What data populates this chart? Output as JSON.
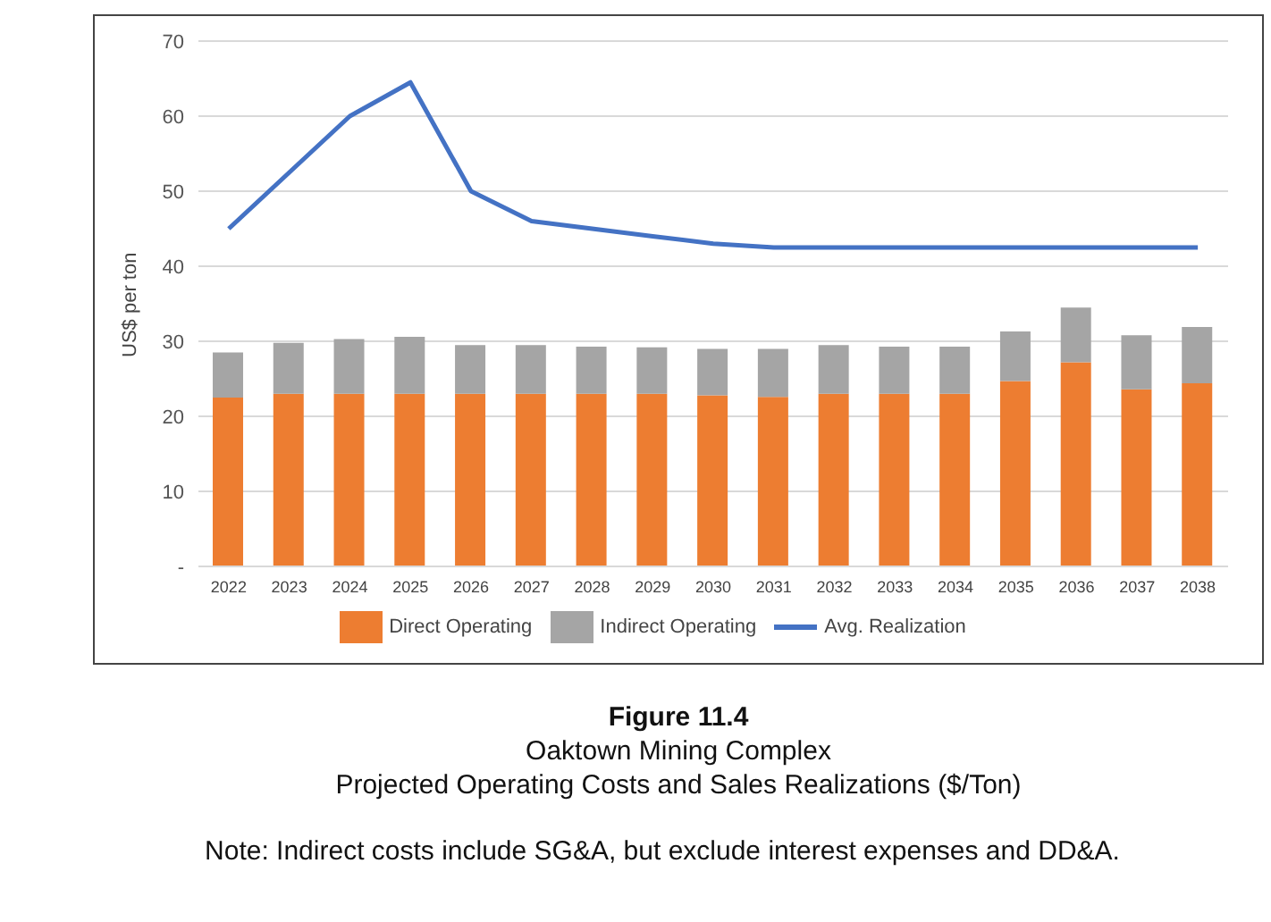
{
  "chart_data": {
    "type": "bar",
    "title": "Figure 11.4",
    "subtitle": "Oaktown Mining Complex",
    "annotations": [
      "Projected Operating Costs and Sales Realizations ($/Ton)",
      "Note: Indirect costs include SG&A, but exclude interest expenses and DD&A."
    ],
    "ylabel": "US$ per ton",
    "categories": [
      "2022",
      "2023",
      "2024",
      "2025",
      "2026",
      "2027",
      "2028",
      "2029",
      "2030",
      "2031",
      "2032",
      "2033",
      "2034",
      "2035",
      "2036",
      "2037",
      "2038"
    ],
    "series": [
      {
        "name": "Direct Operating",
        "color": "#ed7d31",
        "values": [
          22.5,
          23,
          23,
          23,
          23,
          23,
          23,
          23,
          22.8,
          22.6,
          23,
          23,
          23,
          24.7,
          27.2,
          23.6,
          24.4
        ]
      },
      {
        "name": "Indirect Operating",
        "color": "#a5a5a5",
        "values": [
          6,
          6.8,
          7.3,
          7.6,
          6.5,
          6.5,
          6.3,
          6.2,
          6.2,
          6.4,
          6.5,
          6.3,
          6.3,
          6.6,
          7.3,
          7.2,
          7.5
        ]
      },
      {
        "name": "Avg. Realization",
        "type": "line",
        "color": "#4472c4",
        "values": [
          45,
          52.5,
          60,
          64.5,
          50,
          46,
          45,
          44,
          43,
          42.5,
          42.5,
          42.5,
          42.5,
          42.5,
          42.5,
          42.5,
          42.5
        ]
      }
    ],
    "stacked": true,
    "ylim": [
      0,
      70
    ],
    "yticks": [
      {
        "value": 0,
        "label": "-"
      },
      10,
      20,
      30,
      40,
      50,
      60,
      70
    ],
    "grid": "y",
    "legend": "bottom",
    "marker": "none",
    "line_style": "solid"
  }
}
